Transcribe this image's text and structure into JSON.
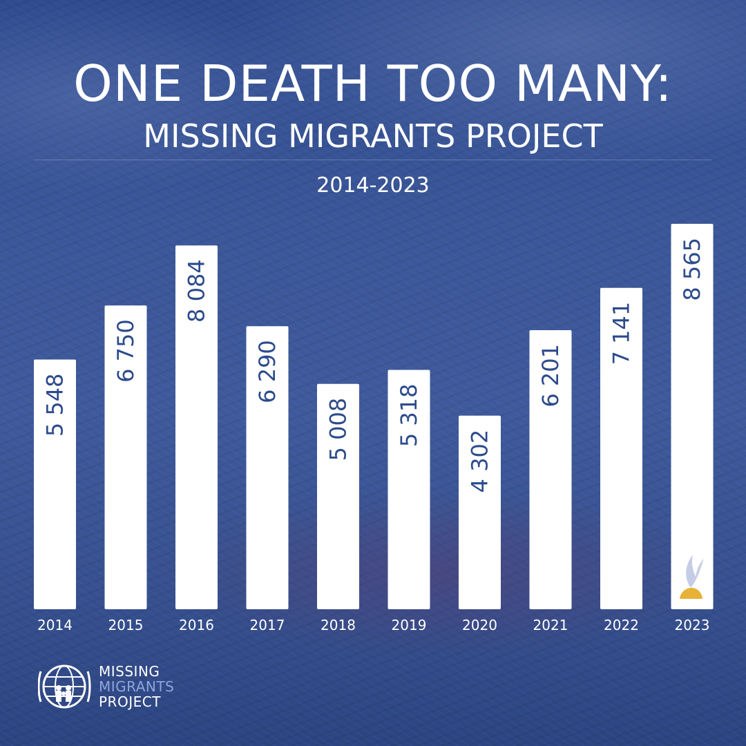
{
  "header": {
    "title": "ONE DEATH TOO MANY:",
    "subtitle": "MISSING MIGRANTS PROJECT",
    "period": "2014-2023"
  },
  "chart_data": {
    "type": "bar",
    "title": "ONE DEATH TOO MANY:",
    "subtitle": "MISSING MIGRANTS PROJECT",
    "xlabel": "",
    "ylabel": "",
    "categories": [
      "2014",
      "2015",
      "2016",
      "2017",
      "2018",
      "2019",
      "2020",
      "2021",
      "2022",
      "2023"
    ],
    "values": [
      5548,
      6750,
      8084,
      6290,
      5008,
      5318,
      4302,
      6201,
      7141,
      8565
    ],
    "value_labels": [
      "5 548",
      "6 750",
      "8 084",
      "6 290",
      "5 008",
      "5 318",
      "4 302",
      "6 201",
      "7 141",
      "8 565"
    ],
    "ylim": [
      0,
      8565
    ],
    "grid": false,
    "legend": "none",
    "bar_color": "#ffffff",
    "label_color": "#2c4a8c"
  },
  "logo": {
    "line1": "MISSING",
    "line2": "MIGRANTS",
    "line3": "PROJECT",
    "text_color": "#ffffff",
    "accent_color": "#8fa6dd"
  },
  "icons": {
    "last_bar_marker": "candle-flame-icon",
    "logo_mark": "iom-globe-family-icon"
  },
  "colors": {
    "background": "#3b5799",
    "flame": "#e8b238"
  }
}
